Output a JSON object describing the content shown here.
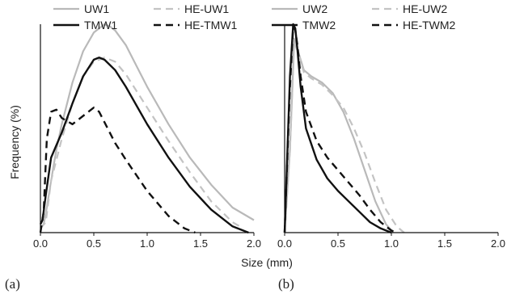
{
  "figure": {
    "ylabel": "Frequency (%)",
    "xlabel": "Size (mm)",
    "panel_labels": [
      "(a)",
      "(b)"
    ]
  },
  "chart_data": [
    {
      "type": "line",
      "xlim": [
        0,
        2.0
      ],
      "xticks": [
        "0.0",
        "0.5",
        "1.0",
        "1.5",
        "2.0"
      ],
      "ylim": [
        0,
        100
      ],
      "grid": false,
      "legend_position": "top",
      "series": [
        {
          "name": "UW1",
          "color": "#b9b9b9",
          "dash": "solid",
          "x": [
            0.0,
            0.03,
            0.06,
            0.1,
            0.15,
            0.2,
            0.3,
            0.4,
            0.5,
            0.6,
            0.65,
            0.7,
            0.8,
            0.9,
            1.0,
            1.2,
            1.4,
            1.6,
            1.8,
            2.0
          ],
          "y": [
            2,
            4,
            12,
            25,
            40,
            52,
            72,
            87,
            96,
            100,
            99,
            97,
            90,
            80,
            70,
            52,
            36,
            23,
            12,
            6
          ]
        },
        {
          "name": "HE-UW1",
          "color": "#c3c3c3",
          "dash": "dash",
          "x": [
            0.0,
            0.05,
            0.1,
            0.2,
            0.3,
            0.4,
            0.5,
            0.6,
            0.7,
            0.8,
            0.9,
            1.0,
            1.2,
            1.4,
            1.6,
            1.8,
            1.9
          ],
          "y": [
            2,
            5,
            25,
            45,
            62,
            75,
            82,
            84,
            82,
            76,
            68,
            60,
            44,
            29,
            15,
            5,
            2
          ]
        },
        {
          "name": "TMW1",
          "color": "#111111",
          "dash": "solid",
          "x": [
            0.0,
            0.02,
            0.05,
            0.1,
            0.15,
            0.2,
            0.3,
            0.4,
            0.5,
            0.55,
            0.6,
            0.7,
            0.8,
            0.9,
            1.0,
            1.2,
            1.4,
            1.6,
            1.8,
            1.95
          ],
          "y": [
            4,
            6,
            18,
            36,
            42,
            48,
            62,
            75,
            83,
            84,
            83,
            78,
            70,
            61,
            52,
            36,
            22,
            11,
            3,
            0
          ]
        },
        {
          "name": "HE-TMW1",
          "color": "#111111",
          "dash": "dash",
          "x": [
            0.0,
            0.03,
            0.06,
            0.1,
            0.15,
            0.2,
            0.3,
            0.4,
            0.5,
            0.55,
            0.6,
            0.7,
            0.8,
            1.0,
            1.2,
            1.35,
            1.45
          ],
          "y": [
            0,
            10,
            45,
            58,
            59,
            55,
            52,
            56,
            60,
            58,
            53,
            43,
            35,
            20,
            8,
            2,
            0
          ]
        }
      ]
    },
    {
      "type": "line",
      "xlim": [
        0,
        2.0
      ],
      "xticks": [
        "0.0",
        "0.5",
        "1.0",
        "1.5",
        "2.0"
      ],
      "ylim": [
        0,
        100
      ],
      "grid": false,
      "legend_position": "top",
      "series": [
        {
          "name": "UW2",
          "color": "#b9b9b9",
          "dash": "solid",
          "x": [
            0.0,
            0.05,
            0.09,
            0.12,
            0.18,
            0.25,
            0.35,
            0.45,
            0.55,
            0.65,
            0.75,
            0.85,
            0.95,
            1.02
          ],
          "y": [
            0,
            40,
            93,
            88,
            78,
            75,
            72,
            67,
            58,
            45,
            30,
            15,
            4,
            0
          ]
        },
        {
          "name": "HE-UW2",
          "color": "#c3c3c3",
          "dash": "dash",
          "x": [
            0.0,
            0.05,
            0.09,
            0.12,
            0.18,
            0.25,
            0.35,
            0.45,
            0.55,
            0.65,
            0.75,
            0.85,
            0.95,
            1.05,
            1.12
          ],
          "y": [
            0,
            40,
            92,
            87,
            77,
            74,
            71,
            66,
            60,
            50,
            38,
            24,
            11,
            3,
            0
          ]
        },
        {
          "name": "TMW2",
          "color": "#111111",
          "dash": "solid",
          "x": [
            0.0,
            0.05,
            0.08,
            0.1,
            0.12,
            0.15,
            0.2,
            0.3,
            0.4,
            0.5,
            0.6,
            0.7,
            0.8,
            0.9,
            1.0
          ],
          "y": [
            0,
            75,
            100,
            98,
            88,
            70,
            50,
            35,
            26,
            20,
            15,
            10,
            5,
            2,
            0
          ]
        },
        {
          "name": "HE-TWM2",
          "color": "#111111",
          "dash": "dash",
          "x": [
            0.0,
            0.05,
            0.08,
            0.1,
            0.12,
            0.15,
            0.2,
            0.3,
            0.4,
            0.5,
            0.6,
            0.7,
            0.8,
            0.9,
            1.0,
            1.05
          ],
          "y": [
            0,
            70,
            99,
            97,
            90,
            75,
            58,
            44,
            36,
            30,
            24,
            18,
            11,
            5,
            1,
            0
          ]
        }
      ]
    }
  ]
}
